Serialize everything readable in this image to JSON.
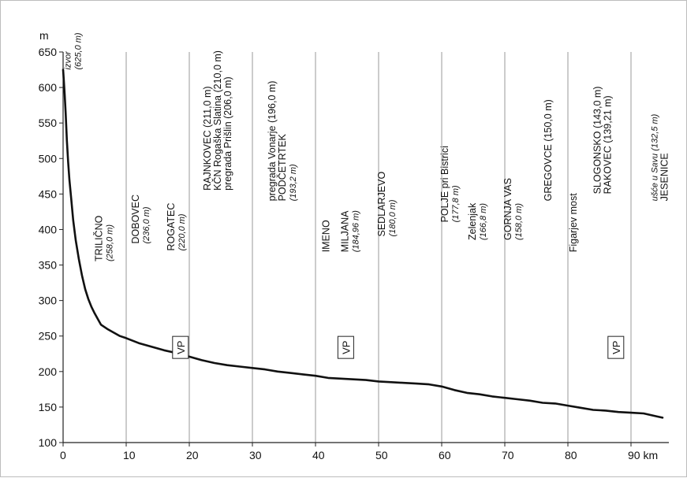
{
  "chart_data": {
    "type": "line",
    "title": "",
    "xlabel": "km",
    "ylabel": "m",
    "xlim": [
      0,
      96
    ],
    "ylim": [
      100,
      650
    ],
    "x_ticks": [
      0,
      10,
      20,
      30,
      40,
      50,
      60,
      70,
      80,
      90
    ],
    "x_tick_labels": [
      "0",
      "10",
      "20",
      "30",
      "40",
      "50",
      "60",
      "70",
      "80",
      "90 km"
    ],
    "y_ticks": [
      100,
      150,
      200,
      250,
      300,
      350,
      400,
      450,
      500,
      550,
      600,
      650
    ],
    "grid": "vertical",
    "series": [
      {
        "points": [
          [
            0,
            625
          ],
          [
            0.1,
            612
          ],
          [
            0.25,
            590
          ],
          [
            0.4,
            565
          ],
          [
            0.6,
            525
          ],
          [
            0.8,
            495
          ],
          [
            1.0,
            470
          ],
          [
            1.3,
            442
          ],
          [
            1.6,
            413
          ],
          [
            2.0,
            385
          ],
          [
            2.5,
            358
          ],
          [
            3.0,
            335
          ],
          [
            3.5,
            316
          ],
          [
            4.0,
            302
          ],
          [
            4.5,
            291
          ],
          [
            5.0,
            282
          ],
          [
            5.5,
            274
          ],
          [
            6.0,
            266
          ],
          [
            7.0,
            260
          ],
          [
            8.0,
            255
          ],
          [
            9.0,
            250
          ],
          [
            10.0,
            247
          ],
          [
            12.0,
            240
          ],
          [
            14.0,
            235
          ],
          [
            16.0,
            230
          ],
          [
            18.0,
            226
          ],
          [
            20.0,
            221
          ],
          [
            22.0,
            216
          ],
          [
            24.0,
            212
          ],
          [
            26.0,
            209
          ],
          [
            28.0,
            207
          ],
          [
            30.0,
            205
          ],
          [
            32.0,
            203
          ],
          [
            34.0,
            200
          ],
          [
            36.0,
            198
          ],
          [
            38.0,
            196
          ],
          [
            40.0,
            194
          ],
          [
            42.0,
            191
          ],
          [
            44.0,
            190
          ],
          [
            46.0,
            189
          ],
          [
            48.0,
            188
          ],
          [
            50.0,
            186
          ],
          [
            52.0,
            185
          ],
          [
            54.0,
            184
          ],
          [
            56.0,
            183
          ],
          [
            58.0,
            182
          ],
          [
            60.0,
            179
          ],
          [
            62.0,
            174
          ],
          [
            64.0,
            170
          ],
          [
            66.0,
            168
          ],
          [
            68.0,
            165
          ],
          [
            70.0,
            163
          ],
          [
            72.0,
            161
          ],
          [
            74.0,
            159
          ],
          [
            76.0,
            156
          ],
          [
            78.0,
            155
          ],
          [
            80.0,
            152
          ],
          [
            82.0,
            149
          ],
          [
            84.0,
            146
          ],
          [
            86.0,
            145
          ],
          [
            88.0,
            143
          ],
          [
            90.0,
            142
          ],
          [
            92.0,
            141
          ],
          [
            94.0,
            137
          ],
          [
            95.0,
            135
          ]
        ]
      }
    ],
    "vp_label": "VP",
    "vp_markers": [
      {
        "x": 18.6,
        "y": 234
      },
      {
        "x": 44.8,
        "y": 234
      },
      {
        "x": 87.6,
        "y": 234
      }
    ],
    "annotations": [
      {
        "x": 1.2,
        "y": 625,
        "lines": [
          {
            "text": "izvor",
            "italic": true
          },
          {
            "text": "(625,0 m)",
            "italic": true
          }
        ]
      },
      {
        "x": 6.2,
        "y": 355,
        "lines": [
          {
            "text": "TRILIČNO",
            "italic": false
          },
          {
            "text": "(258,0 m)",
            "italic": true
          }
        ]
      },
      {
        "x": 12.0,
        "y": 380,
        "lines": [
          {
            "text": "DOBOVEC",
            "italic": false
          },
          {
            "text": "(236,0 m)",
            "italic": true
          }
        ]
      },
      {
        "x": 17.6,
        "y": 370,
        "lines": [
          {
            "text": "ROGATEC",
            "italic": false
          },
          {
            "text": "(220,0 m)",
            "italic": true
          }
        ]
      },
      {
        "x": 23.4,
        "y": 455,
        "lines": [
          {
            "text": "RAJNKOVEC (211,0 m)",
            "italic": false
          },
          {
            "text": "KČN Rogaška Slatina (210,0 m)",
            "italic": false
          },
          {
            "text": "pregrada Prišlin (206,0 m)",
            "italic": false
          }
        ]
      },
      {
        "x": 33.6,
        "y": 440,
        "lines": [
          {
            "text": "pregrada Vonarje (196,0 m)",
            "italic": false
          },
          {
            "text": "PODČETRTEK",
            "italic": false
          },
          {
            "text": "(193,2 m)",
            "italic": true
          }
        ]
      },
      {
        "x": 42.2,
        "y": 368,
        "lines": [
          {
            "text": "IMENO",
            "italic": false
          }
        ]
      },
      {
        "x": 45.2,
        "y": 368,
        "lines": [
          {
            "text": "MILJANA",
            "italic": false
          },
          {
            "text": "(184,96 m)",
            "italic": true
          }
        ]
      },
      {
        "x": 51.0,
        "y": 390,
        "lines": [
          {
            "text": "SEDLARJEVO",
            "italic": false
          },
          {
            "text": "(180,0 m)",
            "italic": true
          }
        ]
      },
      {
        "x": 61.0,
        "y": 410,
        "lines": [
          {
            "text": "POLJE pri Bistrici",
            "italic": false
          },
          {
            "text": "(177,8 m)",
            "italic": true
          }
        ]
      },
      {
        "x": 65.4,
        "y": 385,
        "lines": [
          {
            "text": "Zelenjak",
            "italic": false
          },
          {
            "text": "(166,8 m)",
            "italic": true
          }
        ]
      },
      {
        "x": 71.0,
        "y": 385,
        "lines": [
          {
            "text": "GORNJA VAS",
            "italic": false
          },
          {
            "text": "(158,0 m)",
            "italic": true
          }
        ]
      },
      {
        "x": 77.4,
        "y": 440,
        "lines": [
          {
            "text": "GREGOVCE (150,0 m)",
            "italic": false
          }
        ]
      },
      {
        "x": 81.4,
        "y": 368,
        "lines": [
          {
            "text": "Figarjev most",
            "italic": false
          }
        ]
      },
      {
        "x": 85.2,
        "y": 450,
        "lines": [
          {
            "text": "SLOGONSKO (143,0 m)",
            "italic": false
          },
          {
            "text": "RAKOVEC (139,21 m)",
            "italic": false
          }
        ]
      },
      {
        "x": 94.2,
        "y": 440,
        "lines": [
          {
            "text": "ušće u Savu (132,5 m)",
            "italic": true
          },
          {
            "text": "JESENICE",
            "italic": false
          }
        ]
      }
    ]
  }
}
